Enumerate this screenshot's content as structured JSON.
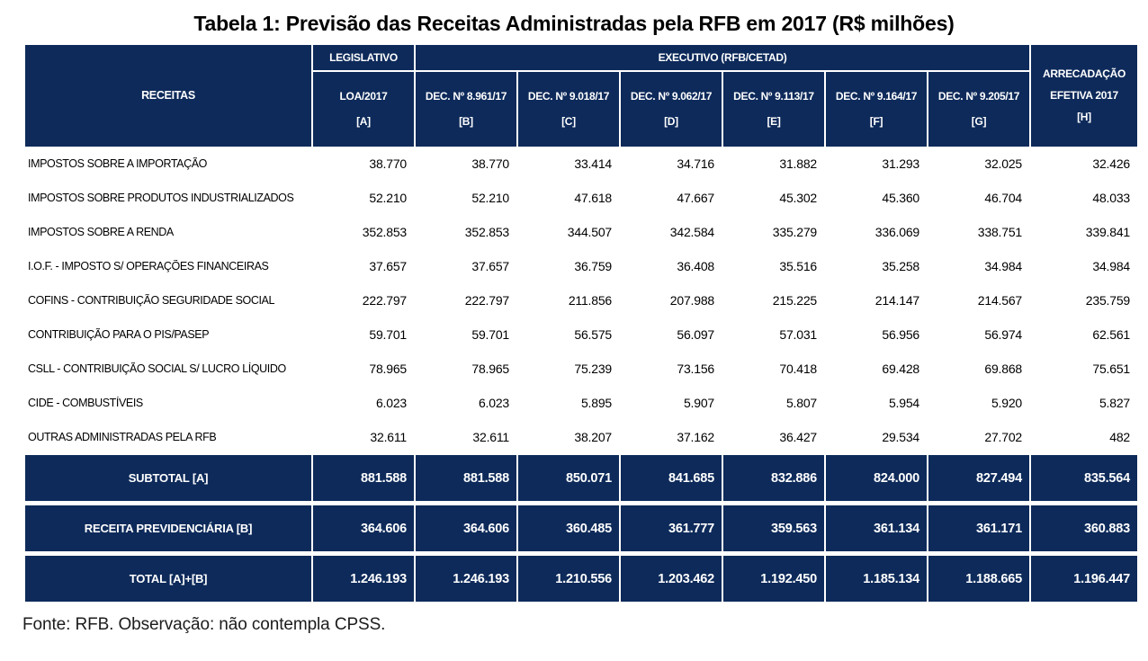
{
  "title": "Tabela 1: Previsão das Receitas Administradas pela RFB em 2017 (R$ milhões)",
  "footer": "Fonte: RFB. Observação: não contempla CPSS.",
  "colors": {
    "navy": "#0d2a5a",
    "header_text": "#ffffff",
    "body_text": "#000000"
  },
  "table": {
    "header": {
      "receitas_label": "RECEITAS",
      "legislativo_label": "LEGISLATIVO",
      "executivo_label": "EXECUTIVO (RFB/CETAD)",
      "arrecadacao_line1": "ARRECADAÇÃO",
      "arrecadacao_line2": "EFETIVA 2017",
      "arrecadacao_ref": "[H]",
      "columns": [
        {
          "name": "LOA/2017",
          "ref": "[A]"
        },
        {
          "name": "DEC. Nº 8.961/17",
          "ref": "[B]"
        },
        {
          "name": "DEC. Nº 9.018/17",
          "ref": "[C]"
        },
        {
          "name": "DEC. Nº 9.062/17",
          "ref": "[D]"
        },
        {
          "name": "DEC. Nº 9.113/17",
          "ref": "[E]"
        },
        {
          "name": "DEC. Nº 9.164/17",
          "ref": "[F]"
        },
        {
          "name": "DEC. Nº 9.205/17",
          "ref": "[G]"
        }
      ]
    },
    "rows": [
      {
        "label": "IMPOSTOS SOBRE A IMPORTAÇÃO",
        "values": [
          "38.770",
          "38.770",
          "33.414",
          "34.716",
          "31.882",
          "31.293",
          "32.025",
          "32.426"
        ]
      },
      {
        "label": "IMPOSTOS SOBRE PRODUTOS INDUSTRIALIZADOS",
        "values": [
          "52.210",
          "52.210",
          "47.618",
          "47.667",
          "45.302",
          "45.360",
          "46.704",
          "48.033"
        ]
      },
      {
        "label": "IMPOSTOS SOBRE A RENDA",
        "values": [
          "352.853",
          "352.853",
          "344.507",
          "342.584",
          "335.279",
          "336.069",
          "338.751",
          "339.841"
        ]
      },
      {
        "label": "I.O.F. - IMPOSTO S/ OPERAÇÕES FINANCEIRAS",
        "values": [
          "37.657",
          "37.657",
          "36.759",
          "36.408",
          "35.516",
          "35.258",
          "34.984",
          "34.984"
        ]
      },
      {
        "label": "COFINS - CONTRIBUIÇÃO SEGURIDADE SOCIAL",
        "values": [
          "222.797",
          "222.797",
          "211.856",
          "207.988",
          "215.225",
          "214.147",
          "214.567",
          "235.759"
        ]
      },
      {
        "label": "CONTRIBUIÇÃO PARA O PIS/PASEP",
        "values": [
          "59.701",
          "59.701",
          "56.575",
          "56.097",
          "57.031",
          "56.956",
          "56.974",
          "62.561"
        ]
      },
      {
        "label": "CSLL - CONTRIBUIÇÃO SOCIAL S/ LUCRO LÍQUIDO",
        "values": [
          "78.965",
          "78.965",
          "75.239",
          "73.156",
          "70.418",
          "69.428",
          "69.868",
          "75.651"
        ]
      },
      {
        "label": "CIDE - COMBUSTÍVEIS",
        "values": [
          "6.023",
          "6.023",
          "5.895",
          "5.907",
          "5.807",
          "5.954",
          "5.920",
          "5.827"
        ]
      },
      {
        "label": "OUTRAS ADMINISTRADAS PELA RFB",
        "values": [
          "32.611",
          "32.611",
          "38.207",
          "37.162",
          "36.427",
          "29.534",
          "27.702",
          "482"
        ]
      }
    ],
    "summary_rows": [
      {
        "label": "SUBTOTAL [A]",
        "values": [
          "881.588",
          "881.588",
          "850.071",
          "841.685",
          "832.886",
          "824.000",
          "827.494",
          "835.564"
        ]
      },
      {
        "label": "RECEITA PREVIDENCIÁRIA [B]",
        "values": [
          "364.606",
          "364.606",
          "360.485",
          "361.777",
          "359.563",
          "361.134",
          "361.171",
          "360.883"
        ]
      },
      {
        "label": "TOTAL [A]+[B]",
        "values": [
          "1.246.193",
          "1.246.193",
          "1.210.556",
          "1.203.462",
          "1.192.450",
          "1.185.134",
          "1.188.665",
          "1.196.447"
        ]
      }
    ]
  }
}
